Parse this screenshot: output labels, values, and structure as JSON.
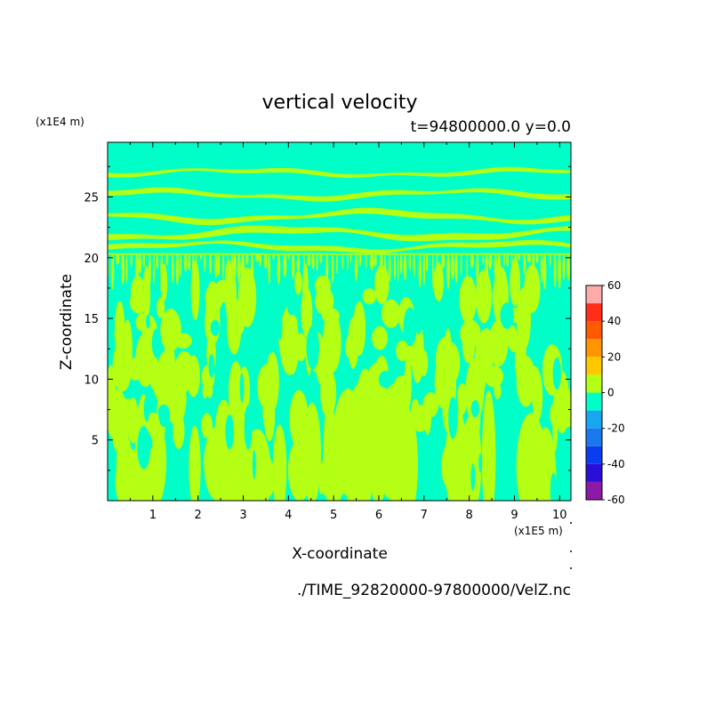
{
  "chart_data": {
    "type": "heatmap",
    "title": "vertical velocity",
    "subtitle": "t=94800000.0 y=0.0",
    "xlabel": "X-coordinate",
    "ylabel": "Z-coordinate",
    "x_unit": "(x1E5 m)",
    "y_unit": "(x1E4 m)",
    "xlim": [
      0,
      10.25
    ],
    "ylim": [
      0,
      29.5
    ],
    "x_ticks": [
      "1",
      "2",
      "3",
      "4",
      "5",
      "6",
      "7",
      "8",
      "9",
      "10"
    ],
    "y_ticks": [
      "5",
      "10",
      "15",
      "20",
      "25"
    ],
    "colorbar": {
      "levels": [
        -60,
        -50,
        -40,
        -30,
        -20,
        -10,
        0,
        10,
        20,
        30,
        40,
        50,
        60
      ],
      "tick_labels": [
        "60",
        "40",
        "20",
        "0",
        "-20",
        "-40",
        "-60"
      ],
      "colors": [
        "#8c1aa6",
        "#2a0fd8",
        "#0a3cf0",
        "#1a78ee",
        "#16a6f2",
        "#00ffc8",
        "#b4ff14",
        "#ffc800",
        "#ff9600",
        "#ff5a00",
        "#ff2d1a",
        "#ffaaaa"
      ]
    },
    "field_description_levels": {
      "background_level": "-10 to 0",
      "pattern_level": "0 to 10",
      "layer_top_z": 20.3
    },
    "source_path": "./TIME_92820000-97800000/VelZ.nc"
  },
  "colors": {
    "background_field": "#00ffc8",
    "positive_field": "#b4ff14"
  }
}
